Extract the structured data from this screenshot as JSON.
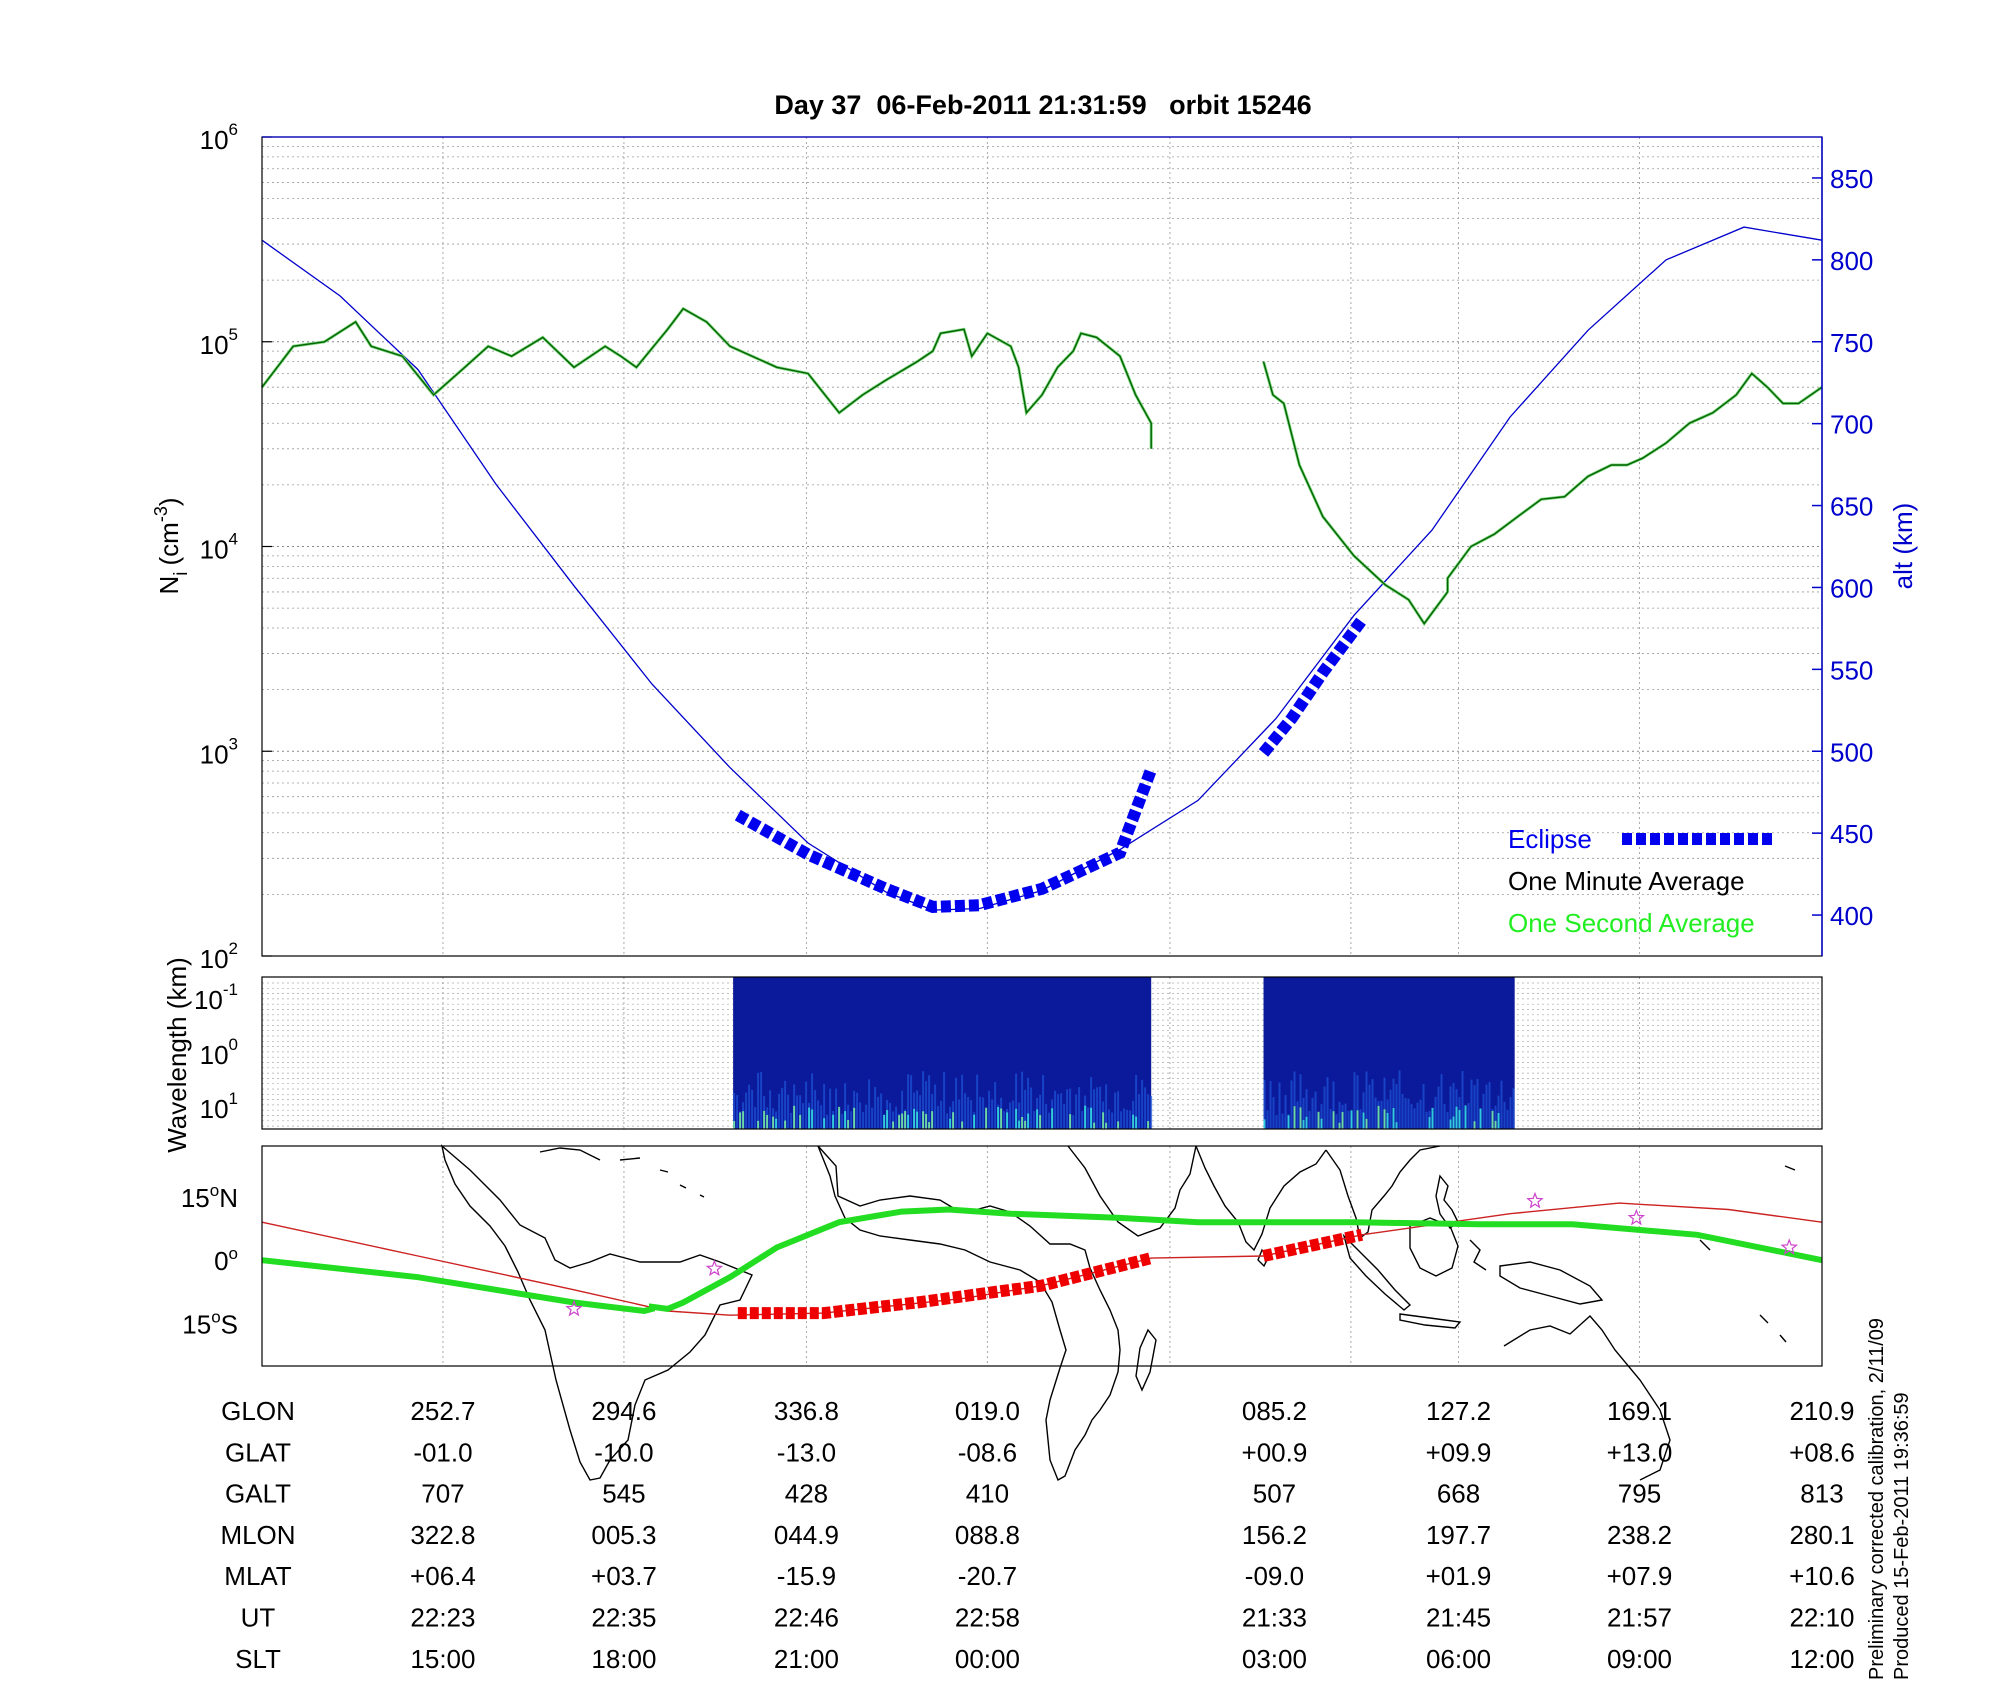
{
  "title": "Day 37  06-Feb-2011 21:31:59   orbit 15246",
  "footnote": {
    "line1": "Preliminary corrected calibration, 2/11/09",
    "line2": "Produced 15-Feb-2011 19:36:59"
  },
  "colors": {
    "ni_line": "#006400",
    "ni_fine": "#7cd67c",
    "altitude": "#0000cc",
    "eclipse": "#0000ee",
    "track_eclipse": "#ee0000",
    "magnetic_equator": "#22dd22",
    "ground_track": "#cc2222",
    "spectrogram_bg": "#0a1a9a",
    "star_marker": "#cc44cc"
  },
  "chart_data": [
    {
      "type": "line",
      "panel": "density",
      "ylabel": "N_i (cm^-3)",
      "ylabel_main": "N",
      "ylabel_sub": "i",
      "ylabel_units": "(cm",
      "ylabel_exp": "-3",
      "ylabel_close": ")",
      "yscale": "log",
      "ylim": [
        100,
        1000000
      ],
      "ytick_base": "10",
      "ytick_exps": [
        "2",
        "3",
        "4",
        "5",
        "6"
      ],
      "y2label": "alt (km)",
      "y2lim": [
        375,
        875
      ],
      "y2ticks": [
        "400",
        "450",
        "500",
        "550",
        "600",
        "650",
        "700",
        "750",
        "800",
        "850"
      ],
      "legend_position": "bottom-right",
      "legend": [
        {
          "label": "Eclipse",
          "color": "#0000ee"
        },
        {
          "label": "One Minute Average",
          "color": "#000000"
        },
        {
          "label": "One Second Average",
          "color": "#22ee22"
        }
      ],
      "ni_segments": [
        [
          [
            0.0,
            60000
          ],
          [
            0.02,
            95000
          ],
          [
            0.04,
            100000
          ],
          [
            0.06,
            125000
          ],
          [
            0.07,
            95000
          ],
          [
            0.09,
            85000
          ],
          [
            0.11,
            55000
          ],
          [
            0.13,
            75000
          ],
          [
            0.145,
            95000
          ],
          [
            0.16,
            85000
          ],
          [
            0.18,
            105000
          ],
          [
            0.2,
            75000
          ],
          [
            0.22,
            95000
          ],
          [
            0.23,
            85000
          ],
          [
            0.24,
            75000
          ],
          [
            0.26,
            115000
          ],
          [
            0.27,
            145000
          ],
          [
            0.285,
            125000
          ],
          [
            0.3,
            95000
          ],
          [
            0.33,
            75000
          ],
          [
            0.35,
            70000
          ],
          [
            0.37,
            45000
          ],
          [
            0.385,
            55000
          ],
          [
            0.4,
            65000
          ],
          [
            0.42,
            80000
          ],
          [
            0.43,
            90000
          ],
          [
            0.435,
            110000
          ],
          [
            0.45,
            115000
          ],
          [
            0.455,
            85000
          ],
          [
            0.465,
            110000
          ],
          [
            0.48,
            95000
          ],
          [
            0.485,
            75000
          ],
          [
            0.49,
            45000
          ],
          [
            0.5,
            55000
          ],
          [
            0.51,
            75000
          ],
          [
            0.52,
            90000
          ],
          [
            0.525,
            110000
          ],
          [
            0.535,
            105000
          ],
          [
            0.55,
            85000
          ],
          [
            0.56,
            55000
          ],
          [
            0.57,
            40000
          ],
          [
            0.57,
            30000
          ]
        ],
        [
          [
            0.642,
            80000
          ],
          [
            0.648,
            55000
          ],
          [
            0.655,
            50000
          ],
          [
            0.665,
            25000
          ],
          [
            0.68,
            14000
          ],
          [
            0.7,
            9000
          ],
          [
            0.72,
            6500
          ],
          [
            0.735,
            5500
          ],
          [
            0.745,
            4200
          ],
          [
            0.76,
            6000
          ],
          [
            0.76,
            7000
          ],
          [
            0.775,
            10000
          ],
          [
            0.79,
            11500
          ],
          [
            0.805,
            14000
          ],
          [
            0.82,
            17000
          ],
          [
            0.835,
            17500
          ],
          [
            0.85,
            22000
          ],
          [
            0.865,
            25000
          ],
          [
            0.875,
            25000
          ],
          [
            0.885,
            27000
          ],
          [
            0.9,
            32000
          ],
          [
            0.915,
            40000
          ],
          [
            0.93,
            45000
          ],
          [
            0.945,
            55000
          ],
          [
            0.955,
            70000
          ],
          [
            0.965,
            60000
          ],
          [
            0.975,
            50000
          ],
          [
            0.985,
            50000
          ],
          [
            1.0,
            60000
          ]
        ]
      ],
      "altitude_km": [
        [
          0.0,
          812
        ],
        [
          0.05,
          778
        ],
        [
          0.1,
          733
        ],
        [
          0.15,
          663
        ],
        [
          0.2,
          601
        ],
        [
          0.25,
          541
        ],
        [
          0.3,
          490
        ],
        [
          0.35,
          444
        ],
        [
          0.4,
          414
        ],
        [
          0.43,
          403
        ],
        [
          0.46,
          404
        ],
        [
          0.5,
          415
        ],
        [
          0.55,
          440
        ],
        [
          0.6,
          470
        ],
        [
          0.65,
          520
        ],
        [
          0.7,
          583
        ],
        [
          0.75,
          635
        ],
        [
          0.8,
          704
        ],
        [
          0.85,
          757
        ],
        [
          0.9,
          800
        ],
        [
          0.95,
          820
        ],
        [
          1.0,
          812
        ]
      ],
      "eclipse_segments": [
        {
          "x": [
            0.305,
            0.57
          ],
          "pts": [
            [
              0.305,
              461
            ],
            [
              0.35,
              437
            ],
            [
              0.4,
              416
            ],
            [
              0.43,
              405
            ],
            [
              0.46,
              406
            ],
            [
              0.5,
              416
            ],
            [
              0.55,
              438
            ],
            [
              0.57,
              489
            ]
          ]
        },
        {
          "x": [
            0.642,
            0.705
          ],
          "pts": [
            [
              0.642,
              499
            ],
            [
              0.66,
              520
            ],
            [
              0.68,
              548
            ],
            [
              0.705,
              580
            ]
          ]
        }
      ]
    },
    {
      "type": "heatmap",
      "panel": "spectrogram",
      "ylabel": "Wavelength (km)",
      "ytick_base": "10",
      "ytick_exps": [
        "-1",
        "0",
        "1"
      ],
      "blocks_x": [
        [
          0.302,
          0.57
        ],
        [
          0.642,
          0.803
        ]
      ]
    },
    {
      "type": "map",
      "panel": "track",
      "yticks": [
        {
          "value": 15,
          "label": "15",
          "deg": "o",
          "hemi": "N"
        },
        {
          "value": 0,
          "label": "0",
          "deg": "o",
          "hemi": ""
        },
        {
          "value": -15,
          "label": "15",
          "deg": "o",
          "hemi": "S"
        }
      ],
      "ylim": [
        -25,
        27
      ],
      "magnetic_equator": [
        [
          0.0,
          0
        ],
        [
          0.1,
          -4
        ],
        [
          0.2,
          -10
        ],
        [
          0.245,
          -12
        ],
        [
          0.25,
          -11.5
        ],
        [
          0.25,
          -11
        ],
        [
          0.26,
          -11.5
        ],
        [
          0.27,
          -10
        ],
        [
          0.3,
          -4
        ],
        [
          0.33,
          3
        ],
        [
          0.37,
          9
        ],
        [
          0.41,
          11.5
        ],
        [
          0.44,
          12
        ],
        [
          0.48,
          11
        ],
        [
          0.55,
          10
        ],
        [
          0.6,
          9
        ],
        [
          0.7,
          9
        ],
        [
          0.78,
          8.5
        ],
        [
          0.84,
          8.5
        ],
        [
          0.92,
          6
        ],
        [
          1.0,
          0
        ]
      ],
      "ground_track": [
        [
          0.0,
          9
        ],
        [
          0.1,
          1
        ],
        [
          0.2,
          -7
        ],
        [
          0.26,
          -12
        ],
        [
          0.3,
          -13
        ],
        [
          0.36,
          -12.5
        ],
        [
          0.45,
          -9
        ],
        [
          0.5,
          -6
        ],
        [
          0.57,
          0.5
        ],
        [
          0.642,
          1
        ],
        [
          0.705,
          6
        ],
        [
          0.8,
          11
        ],
        [
          0.87,
          13.5
        ],
        [
          0.94,
          12
        ],
        [
          1.0,
          9
        ]
      ],
      "track_eclipse_segments": [
        [
          [
            0.305,
            -12.5
          ],
          [
            0.36,
            -12.5
          ],
          [
            0.42,
            -10
          ],
          [
            0.5,
            -6
          ],
          [
            0.57,
            0.5
          ]
        ],
        [
          [
            0.642,
            1
          ],
          [
            0.705,
            6
          ]
        ]
      ],
      "star_markers": [
        [
          0.2,
          -11.5
        ],
        [
          0.29,
          -2
        ],
        [
          0.816,
          14
        ],
        [
          0.881,
          10
        ],
        [
          0.979,
          3
        ]
      ]
    }
  ],
  "table": {
    "row_labels": [
      "GLON",
      "GLAT",
      "GALT",
      "MLON",
      "MLAT",
      "UT",
      "SLT"
    ],
    "columns": [
      {
        "x": 0.116,
        "values": [
          "252.7",
          "-01.0",
          "707",
          "322.8",
          "+06.4",
          "22:23",
          "15:00"
        ]
      },
      {
        "x": 0.232,
        "values": [
          "294.6",
          "-10.0",
          "545",
          "005.3",
          "+03.7",
          "22:35",
          "18:00"
        ]
      },
      {
        "x": 0.349,
        "values": [
          "336.8",
          "-13.0",
          "428",
          "044.9",
          "-15.9",
          "22:46",
          "21:00"
        ]
      },
      {
        "x": 0.465,
        "values": [
          "019.0",
          "-08.6",
          "410",
          "088.8",
          "-20.7",
          "22:58",
          "00:00"
        ]
      },
      {
        "x": 0.649,
        "values": [
          "085.2",
          "+00.9",
          "507",
          "156.2",
          "-09.0",
          "21:33",
          "03:00"
        ]
      },
      {
        "x": 0.767,
        "values": [
          "127.2",
          "+09.9",
          "668",
          "197.7",
          "+01.9",
          "21:45",
          "06:00"
        ]
      },
      {
        "x": 0.883,
        "values": [
          "169.1",
          "+13.0",
          "795",
          "238.2",
          "+07.9",
          "21:57",
          "09:00"
        ]
      },
      {
        "x": 1.0,
        "values": [
          "210.9",
          "+08.6",
          "813",
          "280.1",
          "+10.6",
          "22:10",
          "12:00"
        ]
      }
    ]
  }
}
